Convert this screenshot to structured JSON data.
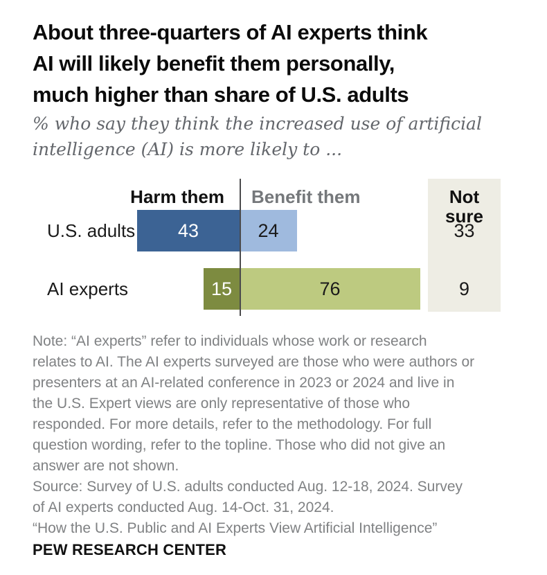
{
  "header": {
    "title": "About three-quarters of AI experts think\nAI will likely benefit them personally,\nmuch higher than share of U.S. adults",
    "subtitle": "% who say they think the increased use of artificial\nintelligence (AI) is more likely to ..."
  },
  "chart_data": {
    "type": "bar",
    "variant": "diverging-horizontal",
    "unit": "percent",
    "grid": false,
    "legend_position": "column-headers",
    "columns": [
      "Harm them",
      "Benefit them",
      "Not sure"
    ],
    "categories": [
      "U.S. adults",
      "AI experts"
    ],
    "series": [
      {
        "name": "Harm them",
        "values": [
          43,
          15
        ]
      },
      {
        "name": "Benefit them",
        "values": [
          24,
          76
        ]
      },
      {
        "name": "Not sure",
        "values": [
          33,
          9
        ]
      }
    ],
    "colors": {
      "harm": [
        "#3c6394",
        "#7d8b40"
      ],
      "benefit": [
        "#9fbade",
        "#bdca80"
      ],
      "harm_value_text": "#ffffff",
      "benefit_value_text": "#1a1a1a",
      "not_sure_bg": "#eeede4",
      "axis_line": "#4a4a4c"
    }
  },
  "footer": {
    "note": "Note: “AI experts” refer to individuals whose work or research\nrelates to AI. The AI experts surveyed are those who were authors or\npresenters at an AI-related conference in 2023 or 2024 and live in\nthe U.S. Expert views are only representative of those who\nresponded. For more details, refer to the methodology. For full\nquestion wording, refer to the topline. Those who did not give an\nanswer are not shown.",
    "source": "Source: Survey of U.S. adults conducted Aug. 12-18, 2024. Survey\nof AI experts conducted Aug. 14-Oct. 31, 2024.",
    "report_title": "“How the U.S. Public and AI Experts View Artificial Intelligence”",
    "brand": "PEW RESEARCH CENTER"
  }
}
